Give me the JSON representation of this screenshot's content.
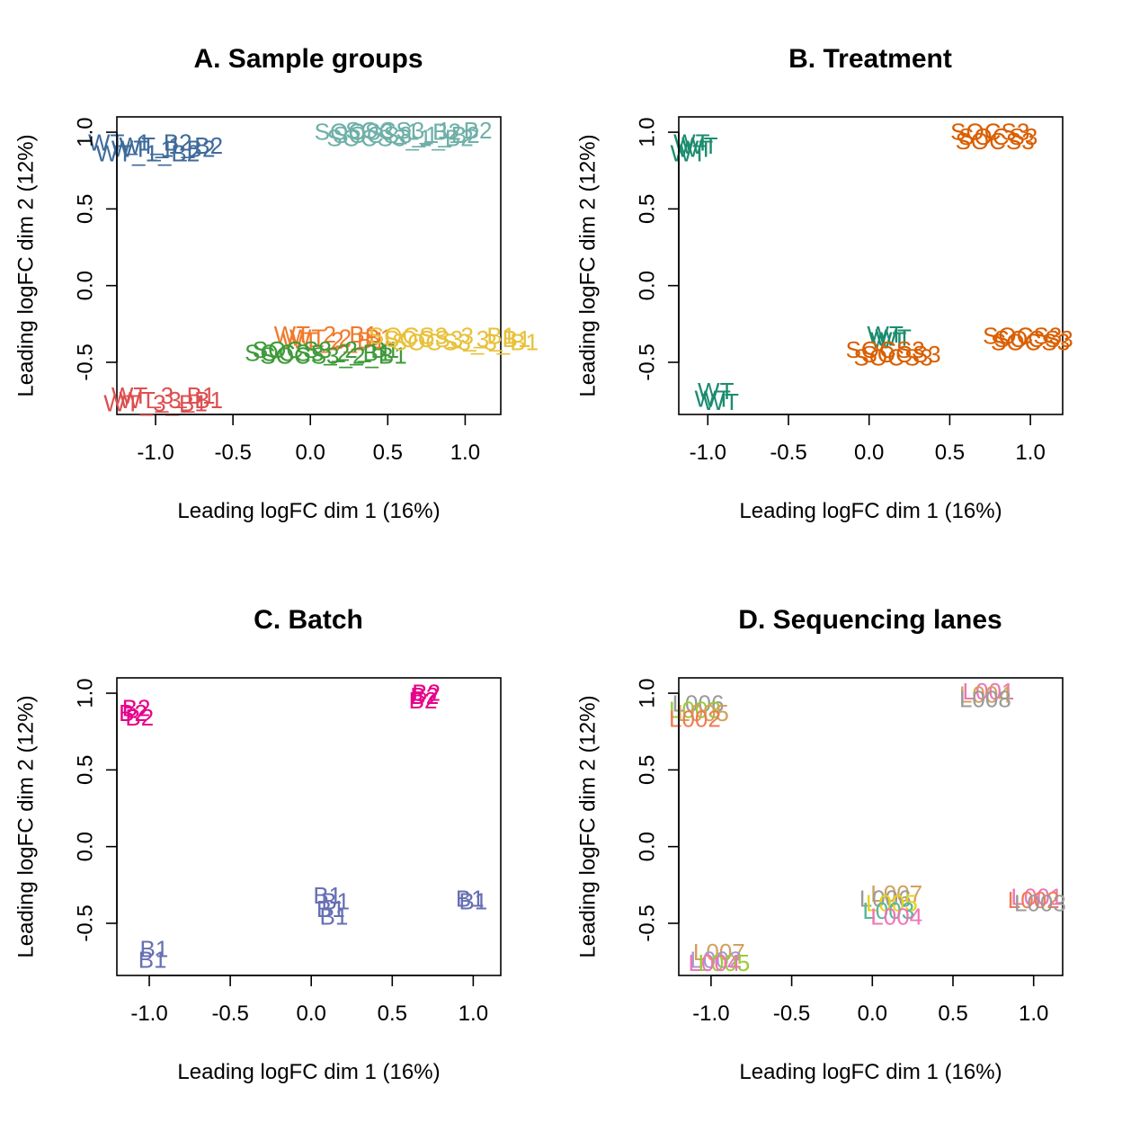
{
  "figure": {
    "colors": {
      "wt1": "#3f6b9a",
      "socs3_1": "#6fb0a9",
      "wt2": "#f07a2a",
      "socs3_2": "#3f9a3a",
      "socs3_3": "#e8c13a",
      "wt3": "#dd4f4f",
      "wt_green": "#1b8c6f",
      "socs3_orange": "#d95f02",
      "batch_pink": "#e7008a",
      "batch_purple": "#6670b3",
      "lane_orange": "#f07a55",
      "lane_olive": "#9acd32",
      "lane_pink": "#f074b6",
      "lane_gray": "#9a9a9a",
      "lane_tan": "#d2a15b",
      "lane_yellow": "#e4d41a",
      "lane_teal": "#58b79c",
      "lane_lav": "#a29ad6"
    }
  },
  "chart_data": [
    {
      "type": "scatter",
      "title": "A. Sample groups",
      "xlabel": "Leading logFC dim 1 (16%)",
      "ylabel": "Leading logFC dim 2 (12%)",
      "xlim": [
        -1.25,
        1.23
      ],
      "ylim": [
        -0.84,
        1.1
      ],
      "xticks": [
        "-1.0",
        "-0.5",
        "0.0",
        "0.5",
        "1.0"
      ],
      "yticks": [
        "-0.5",
        "0.0",
        "0.5",
        "1.0"
      ],
      "points": [
        {
          "label": "WT_1_B2",
          "x": -1.1,
          "y": 0.92,
          "color": "wt1"
        },
        {
          "label": "WT_1_B2",
          "x": -0.95,
          "y": 0.88,
          "color": "wt1"
        },
        {
          "label": "WT_1_B2",
          "x": -1.05,
          "y": 0.85,
          "color": "wt1"
        },
        {
          "label": "WT_1_B2",
          "x": -0.9,
          "y": 0.9,
          "color": "wt1"
        },
        {
          "label": "SOCS3_1_B2",
          "x": 0.5,
          "y": 0.99,
          "color": "socs3_1"
        },
        {
          "label": "SOCS3_1_B2",
          "x": 0.62,
          "y": 0.97,
          "color": "socs3_1"
        },
        {
          "label": "SOCS3_1_B2",
          "x": 0.7,
          "y": 1.0,
          "color": "socs3_1"
        },
        {
          "label": "SOCS3_1_B2",
          "x": 0.58,
          "y": 0.95,
          "color": "socs3_1"
        },
        {
          "label": "WT_2_B1",
          "x": 0.1,
          "y": -0.33,
          "color": "wt2"
        },
        {
          "label": "WT_2_B1",
          "x": 0.2,
          "y": -0.35,
          "color": "wt2"
        },
        {
          "label": "WT_2_B1",
          "x": 0.15,
          "y": -0.37,
          "color": "wt2"
        },
        {
          "label": "SOCS3_2_B1",
          "x": 0.05,
          "y": -0.45,
          "color": "socs3_2"
        },
        {
          "label": "SOCS3_2_B1",
          "x": 0.15,
          "y": -0.47,
          "color": "socs3_2"
        },
        {
          "label": "SOCS3_2_B1",
          "x": 0.1,
          "y": -0.43,
          "color": "socs3_2"
        },
        {
          "label": "SOCS3_3_B1",
          "x": 0.85,
          "y": -0.34,
          "color": "socs3_3"
        },
        {
          "label": "SOCS3_3_B1",
          "x": 0.95,
          "y": -0.36,
          "color": "socs3_3"
        },
        {
          "label": "SOCS3_3_B1",
          "x": 1.0,
          "y": -0.38,
          "color": "socs3_3"
        },
        {
          "label": "WT_3_B1",
          "x": -0.95,
          "y": -0.73,
          "color": "wt3"
        },
        {
          "label": "WT_3_B1",
          "x": -0.9,
          "y": -0.76,
          "color": "wt3"
        },
        {
          "label": "WT_3_B1",
          "x": -1.0,
          "y": -0.78,
          "color": "wt3"
        }
      ]
    },
    {
      "type": "scatter",
      "title": "B. Treatment",
      "xlabel": "Leading logFC dim 1 (16%)",
      "ylabel": "Leading logFC dim 2 (12%)",
      "xlim": [
        -1.18,
        1.2
      ],
      "ylim": [
        -0.84,
        1.1
      ],
      "xticks": [
        "-1.0",
        "-0.5",
        "0.0",
        "0.5",
        "1.0"
      ],
      "yticks": [
        "-0.5",
        "0.0",
        "0.5",
        "1.0"
      ],
      "points": [
        {
          "label": "WT",
          "x": -1.1,
          "y": 0.92,
          "color": "wt_green"
        },
        {
          "label": "WT",
          "x": -1.08,
          "y": 0.88,
          "color": "wt_green"
        },
        {
          "label": "WT",
          "x": -1.12,
          "y": 0.85,
          "color": "wt_green"
        },
        {
          "label": "WT",
          "x": -1.05,
          "y": 0.9,
          "color": "wt_green"
        },
        {
          "label": "SOCS3",
          "x": 0.75,
          "y": 0.99,
          "color": "socs3_orange"
        },
        {
          "label": "SOCS3",
          "x": 0.8,
          "y": 0.96,
          "color": "socs3_orange"
        },
        {
          "label": "SOCS3",
          "x": 0.78,
          "y": 0.93,
          "color": "socs3_orange"
        },
        {
          "label": "WT",
          "x": 0.1,
          "y": -0.33,
          "color": "wt_green"
        },
        {
          "label": "WT",
          "x": 0.15,
          "y": -0.35,
          "color": "wt_green"
        },
        {
          "label": "WT",
          "x": 0.12,
          "y": -0.37,
          "color": "wt_green"
        },
        {
          "label": "SOCS3",
          "x": 0.1,
          "y": -0.43,
          "color": "socs3_orange"
        },
        {
          "label": "SOCS3",
          "x": 0.2,
          "y": -0.46,
          "color": "socs3_orange"
        },
        {
          "label": "SOCS3",
          "x": 0.15,
          "y": -0.48,
          "color": "socs3_orange"
        },
        {
          "label": "SOCS3",
          "x": 0.95,
          "y": -0.34,
          "color": "socs3_orange"
        },
        {
          "label": "SOCS3",
          "x": 1.02,
          "y": -0.36,
          "color": "socs3_orange"
        },
        {
          "label": "SOCS3",
          "x": 1.0,
          "y": -0.38,
          "color": "socs3_orange"
        },
        {
          "label": "WT",
          "x": -0.95,
          "y": -0.7,
          "color": "wt_green"
        },
        {
          "label": "WT",
          "x": -0.97,
          "y": -0.75,
          "color": "wt_green"
        },
        {
          "label": "WT",
          "x": -0.92,
          "y": -0.77,
          "color": "wt_green"
        }
      ]
    },
    {
      "type": "scatter",
      "title": "C. Batch",
      "xlabel": "Leading logFC dim 1 (16%)",
      "ylabel": "Leading logFC dim 2 (12%)",
      "xlim": [
        -1.2,
        1.17
      ],
      "ylim": [
        -0.84,
        1.1
      ],
      "xticks": [
        "-1.0",
        "-0.5",
        "0.0",
        "0.5",
        "1.0"
      ],
      "yticks": [
        "-0.5",
        "0.0",
        "0.5",
        "1.0"
      ],
      "points": [
        {
          "label": "B2",
          "x": -1.08,
          "y": 0.89,
          "color": "batch_pink"
        },
        {
          "label": "B2",
          "x": -1.1,
          "y": 0.86,
          "color": "batch_pink"
        },
        {
          "label": "B2",
          "x": -1.06,
          "y": 0.83,
          "color": "batch_pink"
        },
        {
          "label": "B2",
          "x": 0.71,
          "y": 0.99,
          "color": "batch_pink"
        },
        {
          "label": "B2",
          "x": 0.7,
          "y": 0.97,
          "color": "batch_pink"
        },
        {
          "label": "B2",
          "x": 0.69,
          "y": 0.94,
          "color": "batch_pink"
        },
        {
          "label": "B1",
          "x": 0.1,
          "y": -0.33,
          "color": "batch_purple"
        },
        {
          "label": "B1",
          "x": 0.15,
          "y": -0.37,
          "color": "batch_purple"
        },
        {
          "label": "B1",
          "x": 0.12,
          "y": -0.42,
          "color": "batch_purple"
        },
        {
          "label": "B1",
          "x": 0.14,
          "y": -0.47,
          "color": "batch_purple"
        },
        {
          "label": "B1",
          "x": 0.98,
          "y": -0.35,
          "color": "batch_purple"
        },
        {
          "label": "B1",
          "x": 1.0,
          "y": -0.37,
          "color": "batch_purple"
        },
        {
          "label": "B1",
          "x": -0.97,
          "y": -0.68,
          "color": "batch_purple"
        },
        {
          "label": "B1",
          "x": -0.98,
          "y": -0.75,
          "color": "batch_purple"
        }
      ]
    },
    {
      "type": "scatter",
      "title": "D. Sequencing lanes",
      "xlabel": "Leading logFC dim 1 (16%)",
      "ylabel": "Leading logFC dim 2 (12%)",
      "xlim": [
        -1.2,
        1.18
      ],
      "ylim": [
        -0.84,
        1.1
      ],
      "xticks": [
        "-1.0",
        "-0.5",
        "0.0",
        "0.5",
        "1.0"
      ],
      "yticks": [
        "-0.5",
        "0.0",
        "0.5",
        "1.0"
      ],
      "points": [
        {
          "label": "L006",
          "x": -1.08,
          "y": 0.92,
          "color": "lane_gray"
        },
        {
          "label": "L003",
          "x": -1.1,
          "y": 0.88,
          "color": "lane_olive"
        },
        {
          "label": "L005",
          "x": -1.05,
          "y": 0.86,
          "color": "lane_tan"
        },
        {
          "label": "L002",
          "x": -1.1,
          "y": 0.82,
          "color": "lane_orange"
        },
        {
          "label": "L001",
          "x": 0.72,
          "y": 1.0,
          "color": "lane_pink"
        },
        {
          "label": "L004",
          "x": 0.7,
          "y": 0.98,
          "color": "lane_tan"
        },
        {
          "label": "L008",
          "x": 0.7,
          "y": 0.95,
          "color": "lane_gray"
        },
        {
          "label": "L007",
          "x": 0.15,
          "y": -0.32,
          "color": "lane_tan"
        },
        {
          "label": "L006",
          "x": 0.08,
          "y": -0.35,
          "color": "lane_gray"
        },
        {
          "label": "L005",
          "x": 0.12,
          "y": -0.38,
          "color": "lane_yellow"
        },
        {
          "label": "L003",
          "x": 0.1,
          "y": -0.43,
          "color": "lane_teal"
        },
        {
          "label": "L004",
          "x": 0.15,
          "y": -0.47,
          "color": "lane_pink"
        },
        {
          "label": "L001",
          "x": 1.02,
          "y": -0.34,
          "color": "lane_pink"
        },
        {
          "label": "L002",
          "x": 1.0,
          "y": -0.36,
          "color": "lane_orange"
        },
        {
          "label": "L003",
          "x": 1.04,
          "y": -0.38,
          "color": "lane_gray"
        },
        {
          "label": "L007",
          "x": -0.95,
          "y": -0.7,
          "color": "lane_tan"
        },
        {
          "label": "L002",
          "x": -0.97,
          "y": -0.75,
          "color": "lane_lav"
        },
        {
          "label": "L005",
          "x": -0.92,
          "y": -0.77,
          "color": "lane_olive"
        },
        {
          "label": "L004",
          "x": -0.98,
          "y": -0.77,
          "color": "lane_pink"
        }
      ]
    }
  ]
}
